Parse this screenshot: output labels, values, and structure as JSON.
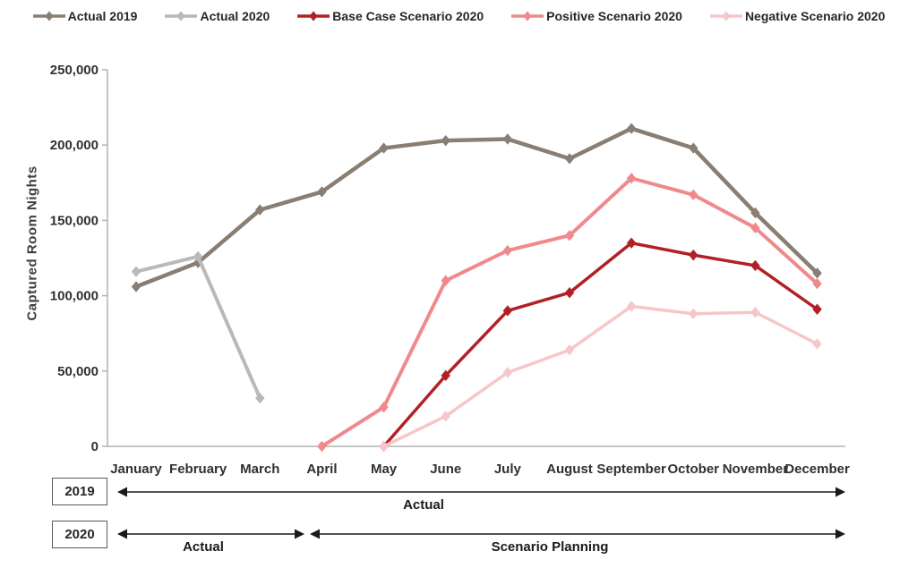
{
  "chart_data": {
    "type": "line",
    "title": "",
    "ylabel": "Captured Room Nights",
    "xlabel": "",
    "categories": [
      "January",
      "February",
      "March",
      "April",
      "May",
      "June",
      "July",
      "August",
      "September",
      "October",
      "November",
      "December"
    ],
    "ylim": [
      0,
      250000
    ],
    "yticks": [
      0,
      50000,
      100000,
      150000,
      200000,
      250000
    ],
    "grid": false,
    "legend_position": "top",
    "series": [
      {
        "name": "Actual 2019",
        "color": "#8a7e73",
        "marker": "diamond",
        "line_width": 4.5,
        "values": [
          106000,
          122000,
          157000,
          169000,
          198000,
          203000,
          204000,
          191000,
          211000,
          198000,
          155000,
          115000
        ]
      },
      {
        "name": "Actual 2020",
        "color": "#b9b9b9",
        "marker": "diamond",
        "line_width": 4,
        "values": [
          116000,
          126000,
          32000,
          null,
          null,
          null,
          null,
          null,
          null,
          null,
          null,
          null
        ]
      },
      {
        "name": "Base Case Scenario 2020",
        "color": "#b22025",
        "marker": "diamond",
        "line_width": 3.5,
        "values": [
          null,
          null,
          null,
          null,
          0,
          47000,
          90000,
          102000,
          135000,
          127000,
          120000,
          91000
        ]
      },
      {
        "name": "Positive Scenario 2020",
        "color": "#f0898b",
        "marker": "diamond",
        "line_width": 4,
        "values": [
          null,
          null,
          null,
          0,
          26000,
          110000,
          130000,
          140000,
          178000,
          167000,
          145000,
          108000
        ]
      },
      {
        "name": "Negative Scenario 2020",
        "color": "#f6c6c9",
        "marker": "diamond",
        "line_width": 3.5,
        "values": [
          null,
          null,
          null,
          null,
          0,
          20000,
          49000,
          64000,
          93000,
          88000,
          89000,
          68000
        ]
      }
    ]
  },
  "timeline": {
    "rows": [
      {
        "year": "2019",
        "segments": [
          {
            "label": "Actual"
          }
        ]
      },
      {
        "year": "2020",
        "segments": [
          {
            "label": "Actual"
          },
          {
            "label": "Scenario Planning"
          }
        ]
      }
    ]
  }
}
